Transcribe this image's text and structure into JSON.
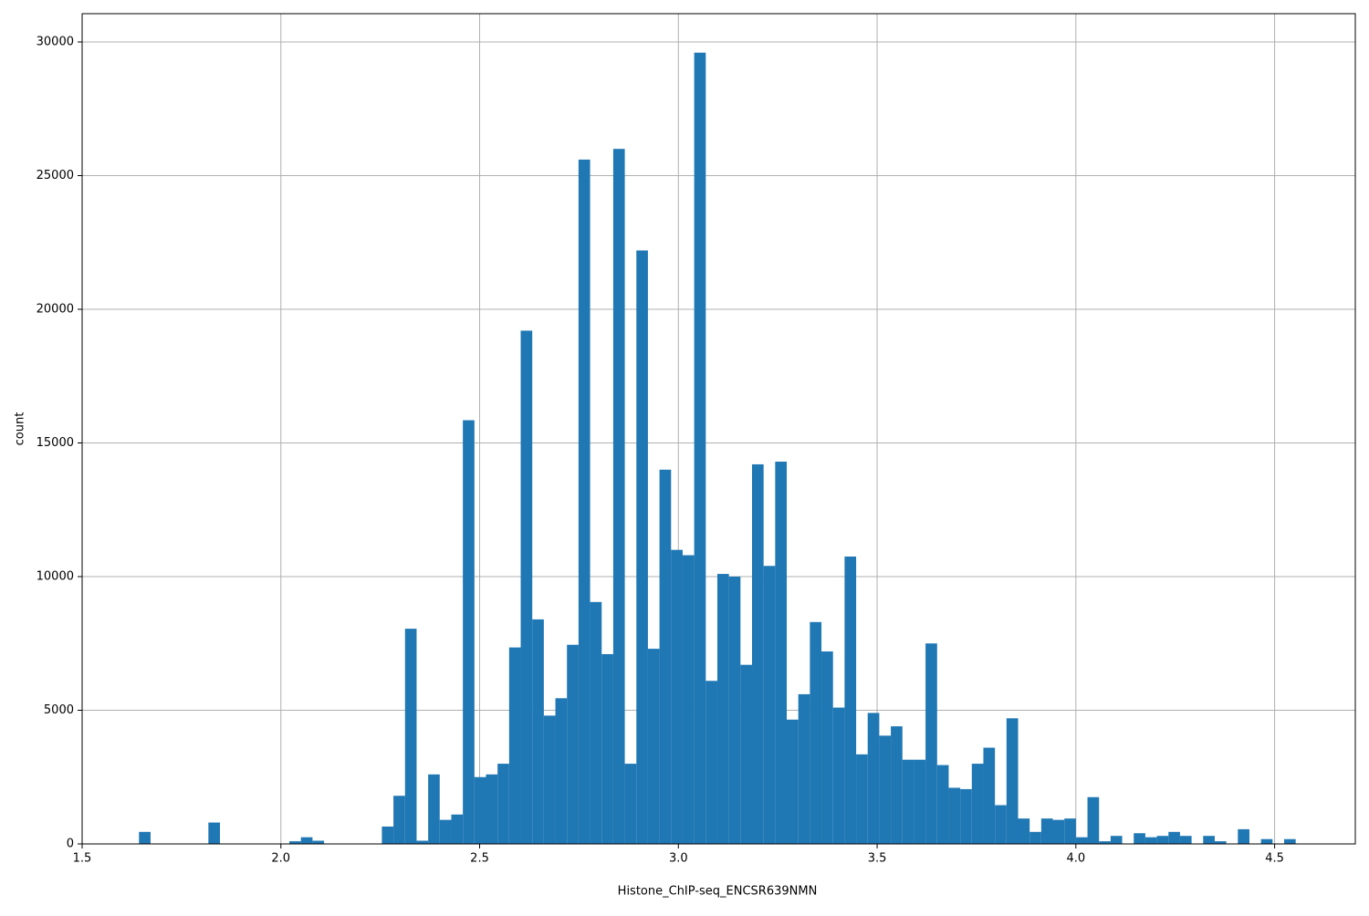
{
  "chart_data": {
    "type": "histogram",
    "x_label": "Histone_ChIP-seq_ENCSR639NMN",
    "y_label": "count",
    "color": "#1f77b4",
    "grid": true,
    "bins": [
      1.643,
      1.6721,
      1.7012,
      1.7303,
      1.7594,
      1.7885,
      1.8176,
      1.8467,
      1.8758,
      1.9049,
      1.934,
      1.9631,
      1.9922,
      2.0213,
      2.0504,
      2.0795,
      2.1086,
      2.1377,
      2.1668,
      2.1959,
      2.225,
      2.2541,
      2.2832,
      2.3123,
      2.3414,
      2.3705,
      2.3996,
      2.4287,
      2.4578,
      2.4869,
      2.516,
      2.5451,
      2.5742,
      2.6033,
      2.6324,
      2.6615,
      2.6906,
      2.7197,
      2.7488,
      2.7779,
      2.807,
      2.8361,
      2.8652,
      2.8943,
      2.9234,
      2.9525,
      2.9816,
      3.0107,
      3.0398,
      3.0689,
      3.098,
      3.1271,
      3.1562,
      3.1853,
      3.2144,
      3.2435,
      3.2726,
      3.3017,
      3.3308,
      3.3599,
      3.389,
      3.4181,
      3.4472,
      3.4763,
      3.5054,
      3.5345,
      3.5636,
      3.5927,
      3.6218,
      3.6509,
      3.68,
      3.7091,
      3.7382,
      3.7673,
      3.7964,
      3.8255,
      3.8546,
      3.8837,
      3.9128,
      3.9419,
      3.971,
      4.0001,
      4.0292,
      4.0583,
      4.0874,
      4.1165,
      4.1456,
      4.1747,
      4.2038,
      4.2329,
      4.262,
      4.2911,
      4.3202,
      4.3493,
      4.3784,
      4.4075,
      4.4366,
      4.4657,
      4.4948,
      4.5239,
      4.553
    ],
    "values": [
      450,
      0,
      0,
      0,
      0,
      0,
      800,
      0,
      0,
      0,
      0,
      0,
      0,
      100,
      250,
      120,
      0,
      0,
      0,
      0,
      0,
      650,
      1800,
      8050,
      120,
      2600,
      900,
      1100,
      15850,
      2500,
      2600,
      3000,
      7350,
      19200,
      8400,
      4800,
      5450,
      7450,
      25600,
      9050,
      7100,
      26000,
      3000,
      22200,
      7300,
      14000,
      11000,
      10800,
      29600,
      6100,
      10100,
      10000,
      6700,
      14200,
      10400,
      14300,
      4650,
      5600,
      8300,
      7200,
      5100,
      10750,
      3350,
      4900,
      4050,
      4400,
      3150,
      3150,
      7500,
      2950,
      2100,
      2050,
      3000,
      3600,
      1450,
      4700,
      950,
      450,
      950,
      900,
      950,
      250,
      1750,
      100,
      300,
      0,
      400,
      250,
      300,
      450,
      300,
      0,
      300,
      100,
      0,
      550,
      0,
      180,
      0,
      180
    ],
    "xlim": [
      1.5,
      4.703
    ],
    "ylim": [
      0,
      31058
    ],
    "xticks": [
      1.5,
      {
        "value": 2,
        "label": "2.0"
      },
      2.5,
      {
        "value": 3,
        "label": "3.0"
      },
      3.5,
      {
        "value": 4,
        "label": "4.0"
      },
      4.5
    ],
    "yticks": [
      0,
      5000,
      10000,
      15000,
      20000,
      25000,
      30000
    ]
  }
}
